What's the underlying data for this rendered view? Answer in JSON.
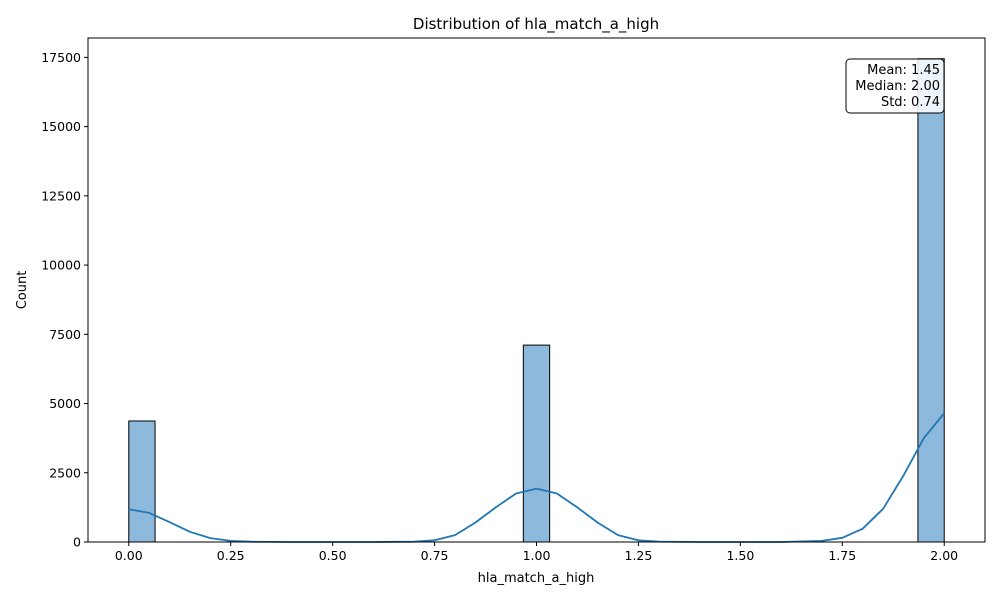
{
  "chart_data": {
    "type": "bar",
    "title": "Distribution of hla_match_a_high",
    "xlabel": "hla_match_a_high",
    "ylabel": "Count",
    "xlim": [
      -0.1,
      2.1
    ],
    "ylim": [
      0,
      18200
    ],
    "xticks": [
      0.0,
      0.25,
      0.5,
      0.75,
      1.0,
      1.25,
      1.5,
      1.75,
      2.0
    ],
    "xtick_labels": [
      "0.00",
      "0.25",
      "0.50",
      "0.75",
      "1.00",
      "1.25",
      "1.50",
      "1.75",
      "2.00"
    ],
    "yticks": [
      0,
      2500,
      5000,
      7500,
      10000,
      12500,
      15000,
      17500
    ],
    "ytick_labels": [
      "0",
      "2500",
      "5000",
      "7500",
      "10000",
      "12500",
      "15000",
      "17500"
    ],
    "bars": [
      {
        "x0": 0.0,
        "x1": 0.0645,
        "value": 4370
      },
      {
        "x0": 0.9677,
        "x1": 1.0323,
        "value": 7110
      },
      {
        "x0": 1.9355,
        "x1": 2.0,
        "value": 17450
      }
    ],
    "kde": {
      "x": [
        0.0,
        0.05,
        0.1,
        0.15,
        0.2,
        0.25,
        0.3,
        0.4,
        0.5,
        0.6,
        0.7,
        0.75,
        0.8,
        0.85,
        0.9,
        0.95,
        1.0,
        1.05,
        1.1,
        1.15,
        1.2,
        1.25,
        1.3,
        1.4,
        1.5,
        1.6,
        1.7,
        1.75,
        1.8,
        1.85,
        1.9,
        1.95,
        2.0
      ],
      "y": [
        1180,
        1050,
        720,
        370,
        140,
        40,
        10,
        0,
        0,
        0,
        10,
        60,
        250,
        700,
        1250,
        1750,
        1930,
        1750,
        1250,
        700,
        250,
        60,
        15,
        0,
        0,
        0,
        40,
        150,
        480,
        1200,
        2400,
        3750,
        4650
      ]
    },
    "bar_color": "#8cb9dc",
    "bar_edge_color": "#000000",
    "kde_color": "#1f77b4",
    "grid": false,
    "legend": "none",
    "stats_box": {
      "lines": [
        "Mean: 1.45",
        "Median: 2.00",
        "Std: 0.74"
      ],
      "placement": "top-right"
    }
  }
}
